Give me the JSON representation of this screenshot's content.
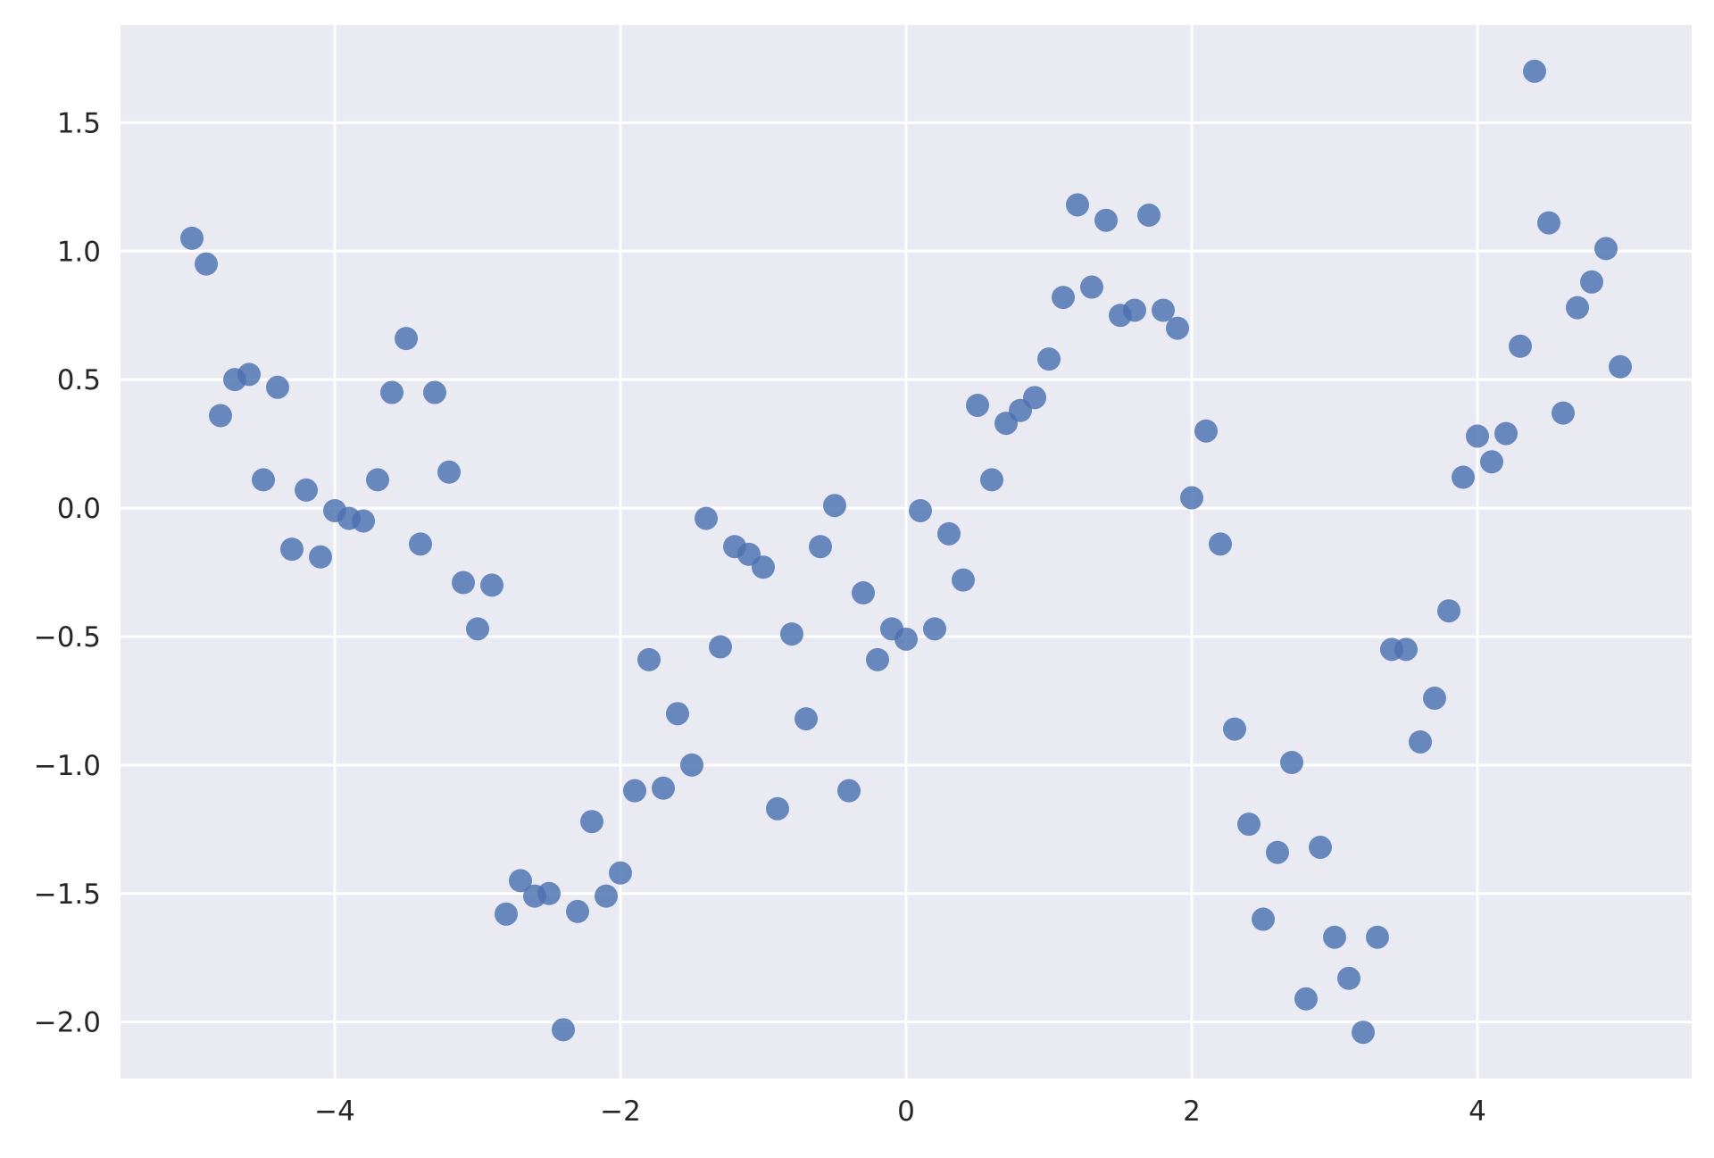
{
  "chart_data": {
    "type": "scatter",
    "title": "",
    "xlabel": "",
    "ylabel": "",
    "xlim": [
      -5.5,
      5.5
    ],
    "ylim": [
      -2.22,
      1.88
    ],
    "grid": true,
    "legend": "none",
    "style": {
      "background": "#eaeaf2",
      "grid_color": "#ffffff",
      "point_color": "#4c72b0"
    },
    "x_ticks": [
      {
        "value": -4,
        "label": "−4"
      },
      {
        "value": -2,
        "label": "−2"
      },
      {
        "value": 0,
        "label": "0"
      },
      {
        "value": 2,
        "label": "2"
      },
      {
        "value": 4,
        "label": "4"
      }
    ],
    "y_ticks": [
      {
        "value": 1.5,
        "label": "1.5"
      },
      {
        "value": 1.0,
        "label": "1.0"
      },
      {
        "value": 0.5,
        "label": "0.5"
      },
      {
        "value": 0.0,
        "label": "0.0"
      },
      {
        "value": -0.5,
        "label": "−0.5"
      },
      {
        "value": -1.0,
        "label": "−1.0"
      },
      {
        "value": -1.5,
        "label": "−1.5"
      },
      {
        "value": -2.0,
        "label": "−2.0"
      }
    ],
    "series": [
      {
        "x": [
          -5.0,
          -4.9,
          -4.8,
          -4.7,
          -4.6,
          -4.5,
          -4.4,
          -4.3,
          -4.2,
          -4.1,
          -4.0,
          -3.9,
          -3.8,
          -3.7,
          -3.6,
          -3.5,
          -3.4,
          -3.3,
          -3.2,
          -3.1,
          -3.0,
          -2.9,
          -2.8,
          -2.7,
          -2.6,
          -2.5,
          -2.4,
          -2.3,
          -2.2,
          -2.1,
          -2.0,
          -1.9,
          -1.8,
          -1.7,
          -1.6,
          -1.5,
          -1.4,
          -1.3,
          -1.2,
          -1.1,
          -1.0,
          -0.9,
          -0.8,
          -0.7,
          -0.6,
          -0.5,
          -0.4,
          -0.3,
          -0.2,
          -0.1,
          0.0,
          0.1,
          0.2,
          0.3,
          0.4,
          0.5,
          0.6,
          0.7,
          0.8,
          0.9,
          1.0,
          1.1,
          1.2,
          1.3,
          1.4,
          1.5,
          1.6,
          1.7,
          1.8,
          1.9,
          2.0,
          2.1,
          2.2,
          2.3,
          2.4,
          2.5,
          2.6,
          2.7,
          2.8,
          2.9,
          3.0,
          3.1,
          3.2,
          3.3,
          3.4,
          3.5,
          3.6,
          3.7,
          3.8,
          3.9,
          4.0,
          4.1,
          4.2,
          4.3,
          4.4,
          4.5,
          4.6,
          4.7,
          4.8,
          4.9,
          5.0
        ],
        "y": [
          1.05,
          0.95,
          0.36,
          0.5,
          0.52,
          0.11,
          0.47,
          -0.16,
          0.07,
          -0.19,
          -0.01,
          -0.04,
          -0.05,
          0.11,
          0.45,
          0.66,
          -0.14,
          0.45,
          0.14,
          -0.29,
          -0.47,
          -0.3,
          -1.58,
          -1.45,
          -1.51,
          -1.5,
          -2.03,
          -1.57,
          -1.22,
          -1.51,
          -1.42,
          -1.1,
          -0.59,
          -1.09,
          -0.8,
          -1.0,
          -0.04,
          -0.54,
          -0.15,
          -0.18,
          -0.23,
          -1.17,
          -0.49,
          -0.82,
          -0.15,
          0.01,
          -1.1,
          -0.33,
          -0.59,
          -0.47,
          -0.51,
          -0.01,
          -0.47,
          -0.1,
          -0.28,
          0.4,
          0.11,
          0.33,
          0.38,
          0.43,
          0.58,
          0.82,
          1.18,
          0.86,
          1.12,
          0.75,
          0.77,
          1.14,
          0.77,
          0.7,
          0.04,
          0.3,
          -0.14,
          -0.86,
          -1.23,
          -1.6,
          -1.34,
          -0.99,
          -1.91,
          -1.32,
          -1.67,
          -1.83,
          -2.04,
          -1.67,
          -0.55,
          -0.55,
          -0.91,
          -0.74,
          -0.4,
          0.12,
          0.28,
          0.18,
          0.29,
          0.63,
          1.7,
          1.11,
          0.37,
          0.78,
          0.88,
          1.01,
          0.55
        ]
      }
    ]
  }
}
